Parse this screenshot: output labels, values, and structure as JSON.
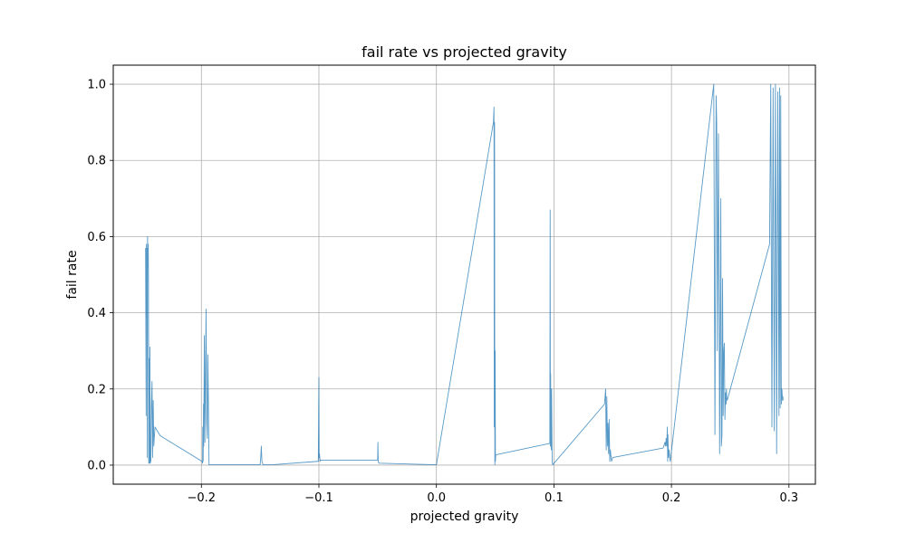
{
  "chart_data": {
    "type": "line",
    "title": "fail rate vs projected gravity",
    "xlabel": "projected gravity",
    "ylabel": "fail rate",
    "xlim": [
      -0.275,
      0.3225
    ],
    "ylim": [
      -0.05,
      1.05
    ],
    "xticks": [
      -0.2,
      -0.1,
      0.0,
      0.1,
      0.2,
      0.3
    ],
    "xtick_labels": [
      "−0.2",
      "−0.1",
      "0.0",
      "0.1",
      "0.2",
      "0.3"
    ],
    "yticks": [
      0.0,
      0.2,
      0.4,
      0.6,
      0.8,
      1.0
    ],
    "ytick_labels": [
      "0.0",
      "0.2",
      "0.4",
      "0.6",
      "0.8",
      "1.0"
    ],
    "grid": true,
    "line_color": "#1f77b4",
    "series": [
      {
        "x": [
          -0.2475,
          -0.247,
          -0.2468,
          -0.2465,
          -0.2462,
          -0.246,
          -0.2458,
          -0.2455,
          -0.2452,
          -0.245,
          -0.2448,
          -0.2445,
          -0.2442,
          -0.244,
          -0.2438,
          -0.2435,
          -0.2432,
          -0.243,
          -0.2425,
          -0.242,
          -0.2415,
          -0.241,
          -0.2405,
          -0.2395,
          -0.235,
          -0.1995,
          -0.199,
          -0.1988,
          -0.1985,
          -0.1982,
          -0.198,
          -0.1975,
          -0.197,
          -0.1965,
          -0.196,
          -0.1955,
          -0.195,
          -0.1945,
          -0.194,
          -0.1935,
          -0.1925,
          -0.15,
          -0.1495,
          -0.149,
          -0.1485,
          -0.1475,
          -0.14,
          -0.1005,
          -0.1,
          -0.0998,
          -0.0995,
          -0.099,
          -0.0985,
          -0.05,
          -0.0498,
          -0.0495,
          -0.049,
          0.0,
          0.0485,
          0.049,
          0.0492,
          0.0495,
          0.0497,
          0.05,
          0.0502,
          0.0505,
          0.0965,
          0.0968,
          0.097,
          0.0972,
          0.0975,
          0.0978,
          0.098,
          0.0985,
          0.099,
          0.143,
          0.144,
          0.1445,
          0.145,
          0.1455,
          0.146,
          0.1465,
          0.147,
          0.1475,
          0.148,
          0.149,
          0.15,
          0.193,
          0.1945,
          0.195,
          0.1955,
          0.196,
          0.1965,
          0.1968,
          0.197,
          0.1975,
          0.1978,
          0.198,
          0.1985,
          0.199,
          0.236,
          0.237,
          0.238,
          0.2385,
          0.239,
          0.24,
          0.241,
          0.242,
          0.2425,
          0.243,
          0.2435,
          0.244,
          0.2445,
          0.245,
          0.2455,
          0.246,
          0.2465,
          0.2468,
          0.247,
          0.2475,
          0.2835,
          0.2845,
          0.2855,
          0.2865,
          0.2875,
          0.2885,
          0.2895,
          0.2905,
          0.2915,
          0.292,
          0.2925,
          0.293,
          0.2935,
          0.294,
          0.2945,
          0.2948,
          0.295
        ],
        "y": [
          0.57,
          0.13,
          0.58,
          0.39,
          0.57,
          0.02,
          0.6,
          0.52,
          0.58,
          0.48,
          0.005,
          0.28,
          0.005,
          0.005,
          0.31,
          0.005,
          0.01,
          0.01,
          0.16,
          0.22,
          0.02,
          0.17,
          0.05,
          0.1,
          0.077,
          0.01,
          0.005,
          0.1,
          0.01,
          0.16,
          0.05,
          0.34,
          0.06,
          0.24,
          0.41,
          0.11,
          0.07,
          0.29,
          0.16,
          0.001,
          0.001,
          0.001,
          0.02,
          0.05,
          0.01,
          0.001,
          0.001,
          0.01,
          0.23,
          0.02,
          0.03,
          0.01,
          0.013,
          0.013,
          0.06,
          0.01,
          0.005,
          0.001,
          0.9,
          0.94,
          0.1,
          0.9,
          0.001,
          0.3,
          0.01,
          0.027,
          0.057,
          0.67,
          0.05,
          0.24,
          0.05,
          0.04,
          0.2,
          0.01,
          0.001,
          0.16,
          0.2,
          0.04,
          0.18,
          0.05,
          0.11,
          0.03,
          0.12,
          0.01,
          0.04,
          0.01,
          0.02,
          0.045,
          0.06,
          0.05,
          0.07,
          0.05,
          0.1,
          0.01,
          0.08,
          0.02,
          0.03,
          0.04,
          0.02,
          0.01,
          1.0,
          0.08,
          0.97,
          0.9,
          0.3,
          0.87,
          0.03,
          0.7,
          0.05,
          0.08,
          0.49,
          0.13,
          0.3,
          0.32,
          0.12,
          0.19,
          0.16,
          0.2,
          0.18,
          0.17,
          0.58,
          1.0,
          0.1,
          0.99,
          0.09,
          1.0,
          0.03,
          0.98,
          0.13,
          0.99,
          0.15,
          0.97,
          0.16,
          0.2,
          0.17,
          0.18,
          0.17
        ]
      }
    ]
  }
}
